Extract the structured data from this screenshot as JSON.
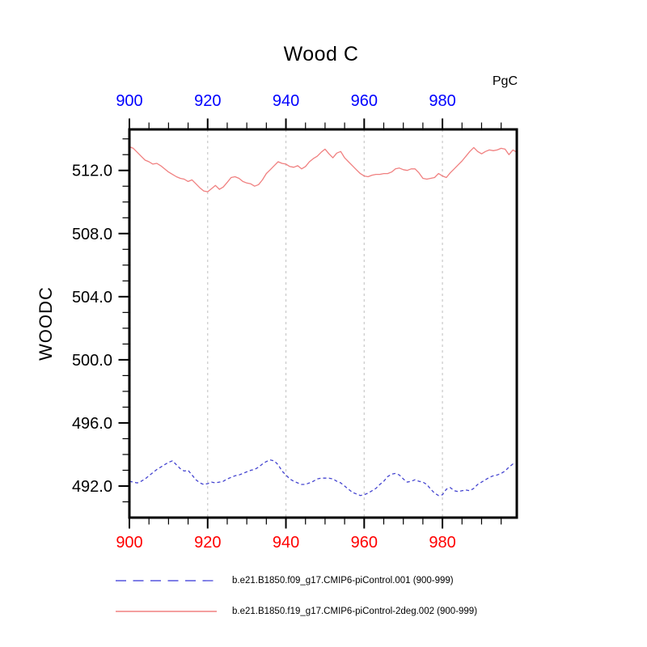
{
  "title": "Wood C",
  "units_label": "PgC",
  "y_axis_title": "WOODC",
  "colors": {
    "background": "#ffffff",
    "axis_frame": "#000000",
    "tick_marks": "#000000",
    "top_axis_labels": "#0000ff",
    "bottom_axis_labels": "#ff0000",
    "y_axis_labels": "#000000",
    "gridline": "#c9c9c9"
  },
  "legend": {
    "items": [
      {
        "label": "b.e21.B1850.f09_g17.CMIP6-piControl.001 (900-999)",
        "color": "#5555dd",
        "style": "dashed"
      },
      {
        "label": "b.e21.B1850.f19_g17.CMIP6-piControl-2deg.002 (900-999)",
        "color": "#f08080",
        "style": "solid"
      }
    ]
  },
  "chart_data": {
    "type": "line",
    "title": "Wood C",
    "ylabel": "WOODC",
    "units": "PgC",
    "xlim": [
      900,
      999
    ],
    "ylim": [
      490.0,
      514.6
    ],
    "grid_on": true,
    "gridlines_x": [
      920,
      940,
      960,
      980
    ],
    "x_major_ticks": [
      900,
      920,
      940,
      960,
      980
    ],
    "x_tick_labels": [
      "900",
      "920",
      "940",
      "960",
      "980"
    ],
    "x_minor_tick_step": 5,
    "y_major_ticks": [
      492.0,
      496.0,
      500.0,
      504.0,
      508.0,
      512.0
    ],
    "y_tick_labels": [
      "492.0",
      "496.0",
      "500.0",
      "504.0",
      "508.0",
      "512.0"
    ],
    "y_minor_tick_step": 1,
    "x_start": 900,
    "x_step": 1,
    "series": [
      {
        "name": "b.e21.B1850.f09_g17.CMIP6-piControl.001 (900-999)",
        "color": "#4444d0",
        "style": "dashed",
        "values": [
          492.3,
          492.25,
          492.2,
          492.3,
          492.45,
          492.65,
          492.85,
          493.05,
          493.2,
          493.35,
          493.5,
          493.6,
          493.35,
          493.1,
          492.95,
          493.0,
          492.7,
          492.4,
          492.2,
          492.1,
          492.15,
          492.25,
          492.2,
          492.25,
          492.3,
          492.45,
          492.55,
          492.65,
          492.7,
          492.8,
          492.9,
          493.0,
          493.05,
          493.2,
          493.4,
          493.55,
          493.65,
          493.6,
          493.35,
          492.95,
          492.7,
          492.45,
          492.3,
          492.2,
          492.1,
          492.1,
          492.2,
          492.3,
          492.45,
          492.5,
          492.5,
          492.5,
          492.45,
          492.3,
          492.2,
          492.0,
          491.8,
          491.6,
          491.5,
          491.4,
          491.45,
          491.55,
          491.7,
          491.85,
          492.1,
          492.3,
          492.6,
          492.75,
          492.8,
          492.7,
          492.45,
          492.25,
          492.3,
          492.4,
          492.3,
          492.25,
          492.1,
          491.8,
          491.55,
          491.4,
          491.45,
          491.8,
          491.9,
          491.7,
          491.65,
          491.7,
          491.75,
          491.7,
          491.85,
          492.1,
          492.25,
          492.4,
          492.55,
          492.65,
          492.7,
          492.8,
          492.95,
          493.2,
          493.4,
          493.35
        ]
      },
      {
        "name": "b.e21.B1850.f19_g17.CMIP6-piControl-2deg.002 (900-999)",
        "color": "#f08080",
        "style": "solid",
        "values": [
          513.5,
          513.4,
          513.15,
          512.9,
          512.65,
          512.55,
          512.4,
          512.45,
          512.3,
          512.1,
          511.9,
          511.75,
          511.6,
          511.5,
          511.45,
          511.3,
          511.4,
          511.15,
          510.9,
          510.7,
          510.65,
          510.85,
          511.05,
          510.8,
          510.95,
          511.25,
          511.55,
          511.6,
          511.5,
          511.3,
          511.2,
          511.15,
          511.0,
          511.1,
          511.4,
          511.8,
          512.05,
          512.3,
          512.55,
          512.45,
          512.4,
          512.25,
          512.2,
          512.3,
          512.1,
          512.25,
          512.55,
          512.75,
          512.9,
          513.15,
          513.35,
          513.05,
          512.8,
          513.1,
          513.2,
          512.8,
          512.55,
          512.3,
          512.05,
          511.8,
          511.65,
          511.6,
          511.7,
          511.75,
          511.75,
          511.8,
          511.8,
          511.9,
          512.1,
          512.15,
          512.05,
          512.0,
          512.1,
          512.1,
          511.85,
          511.5,
          511.45,
          511.5,
          511.55,
          511.8,
          511.65,
          511.55,
          511.85,
          512.1,
          512.35,
          512.6,
          512.9,
          513.2,
          513.45,
          513.2,
          513.05,
          513.2,
          513.3,
          513.25,
          513.3,
          513.4,
          513.35,
          513.0,
          513.3,
          513.15
        ]
      }
    ]
  }
}
